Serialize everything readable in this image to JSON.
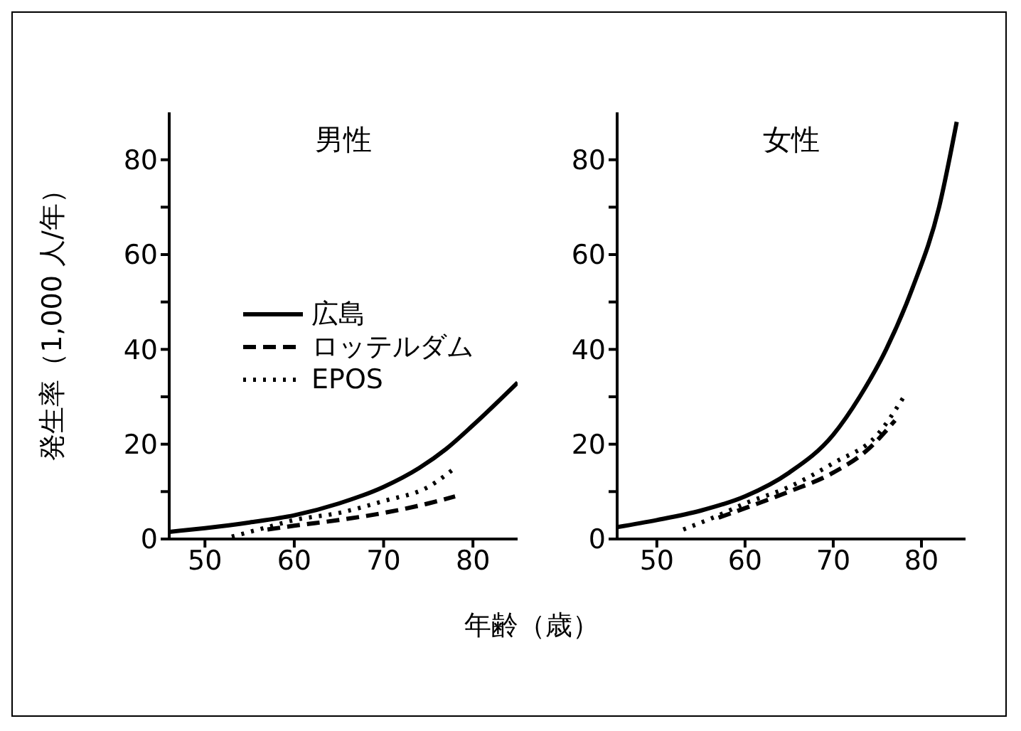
{
  "chart_data": [
    {
      "type": "line",
      "title": "男性",
      "ylabel": "発生率（1,000 人/年）",
      "xlabel": "年齢（歳）",
      "xlim": [
        46,
        85
      ],
      "xticks": [
        50,
        60,
        70,
        80
      ],
      "ylim": [
        0,
        90
      ],
      "yticks": [
        0,
        {
          "value": 10,
          "label": null
        },
        20,
        {
          "value": 30,
          "label": null
        },
        40,
        {
          "value": 50,
          "label": null
        },
        60,
        {
          "value": 70,
          "label": null
        },
        80
      ],
      "legend": "left",
      "series": [
        {
          "name": "広島",
          "color": "#000000",
          "line_style": "solid",
          "x": [
            46,
            50,
            55,
            60,
            65,
            70,
            74,
            77,
            80,
            85
          ],
          "values": [
            1.5,
            2.3,
            3.5,
            5,
            7.5,
            11,
            15,
            19,
            24,
            33
          ]
        },
        {
          "name": "ロッテルダム",
          "color": "#000000",
          "line_style": "dashed",
          "x": [
            57,
            60,
            65,
            70,
            75,
            78
          ],
          "values": [
            2,
            2.8,
            4,
            5.5,
            7.5,
            9
          ]
        },
        {
          "name": "EPOS",
          "color": "#000000",
          "line_style": "dotted",
          "x": [
            53,
            57,
            60,
            65,
            70,
            75,
            78
          ],
          "values": [
            0.5,
            2.5,
            4,
            5.5,
            8,
            11,
            15
          ]
        }
      ]
    },
    {
      "type": "line",
      "title": "女性",
      "xlim": [
        45.5,
        85
      ],
      "xticks": [
        50,
        60,
        70,
        80
      ],
      "ylim": [
        0,
        90
      ],
      "yticks": [
        0,
        {
          "value": 10,
          "label": null
        },
        20,
        {
          "value": 30,
          "label": null
        },
        40,
        {
          "value": 50,
          "label": null
        },
        60,
        {
          "value": 70,
          "label": null
        },
        80
      ],
      "series": [
        {
          "color": "#000000",
          "line_style": "solid",
          "x": [
            45.5,
            50,
            55,
            60,
            65,
            70,
            73,
            76,
            79,
            82,
            84
          ],
          "values": [
            2.5,
            4,
            6,
            9,
            14,
            22,
            30,
            40,
            53,
            70,
            88
          ]
        },
        {
          "color": "#000000",
          "line_style": "dashed",
          "x": [
            57,
            60,
            65,
            70,
            74,
            77
          ],
          "values": [
            4.5,
            6.5,
            10,
            14,
            19,
            25
          ]
        },
        {
          "color": "#000000",
          "line_style": "dotted",
          "x": [
            53,
            57,
            60,
            65,
            70,
            75,
            78
          ],
          "values": [
            2,
            5,
            7.5,
            11,
            16,
            22,
            30
          ]
        }
      ]
    }
  ]
}
